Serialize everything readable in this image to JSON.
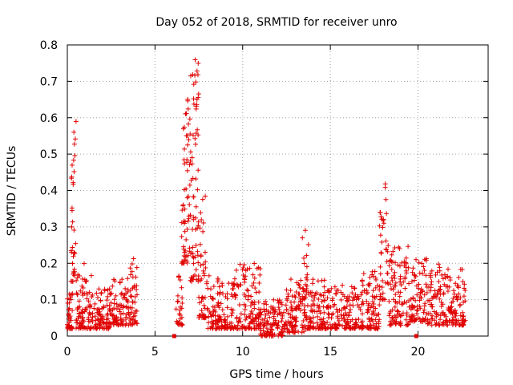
{
  "chart_data": {
    "type": "scatter",
    "title": "Day 052 of 2018, SRMTID for receiver unro",
    "xlabel": "GPS time / hours",
    "ylabel": "SRMTID / TECUs",
    "xlim": [
      0,
      24
    ],
    "ylim": [
      0,
      0.8
    ],
    "xticks": [
      "0",
      "5",
      "10",
      "15",
      "20"
    ],
    "yticks": [
      "0",
      "0.1",
      "0.2",
      "0.3",
      "0.4",
      "0.5",
      "0.6",
      "0.7",
      "0.8"
    ],
    "grid": true,
    "marker_color": "#e00000",
    "series": [
      {
        "name": "SRMTID",
        "marker": "plus",
        "clusters": [
          {
            "x": [
              0.0,
              0.3
            ],
            "y": [
              0.02,
              0.12
            ],
            "n": 40
          },
          {
            "x": [
              0.2,
              0.5
            ],
            "y": [
              0.15,
              0.6
            ],
            "n": 35
          },
          {
            "x": [
              0.5,
              1.5
            ],
            "y": [
              0.02,
              0.17
            ],
            "n": 90
          },
          {
            "x": [
              0.9,
              1.1
            ],
            "y": [
              0.15,
              0.2
            ],
            "n": 5
          },
          {
            "x": [
              1.5,
              2.5
            ],
            "y": [
              0.02,
              0.13
            ],
            "n": 90
          },
          {
            "x": [
              2.5,
              3.5
            ],
            "y": [
              0.03,
              0.16
            ],
            "n": 80
          },
          {
            "x": [
              3.5,
              4.0
            ],
            "y": [
              0.03,
              0.22
            ],
            "n": 45
          },
          {
            "x": [
              6.2,
              6.6
            ],
            "y": [
              0.03,
              0.17
            ],
            "n": 30
          },
          {
            "x": [
              6.5,
              7.0
            ],
            "y": [
              0.2,
              0.66
            ],
            "n": 60
          },
          {
            "x": [
              7.0,
              7.5
            ],
            "y": [
              0.15,
              0.77
            ],
            "n": 70
          },
          {
            "x": [
              7.5,
              8.0
            ],
            "y": [
              0.05,
              0.4
            ],
            "n": 50
          },
          {
            "x": [
              8.0,
              9.5
            ],
            "y": [
              0.02,
              0.17
            ],
            "n": 120
          },
          {
            "x": [
              9.5,
              11.0
            ],
            "y": [
              0.02,
              0.2
            ],
            "n": 130
          },
          {
            "x": [
              11.0,
              12.5
            ],
            "y": [
              0.0,
              0.1
            ],
            "n": 120
          },
          {
            "x": [
              12.5,
              13.5
            ],
            "y": [
              0.01,
              0.16
            ],
            "n": 90
          },
          {
            "x": [
              13.4,
              13.8
            ],
            "y": [
              0.1,
              0.3
            ],
            "n": 20
          },
          {
            "x": [
              13.5,
              15.0
            ],
            "y": [
              0.02,
              0.17
            ],
            "n": 120
          },
          {
            "x": [
              15.0,
              16.5
            ],
            "y": [
              0.02,
              0.14
            ],
            "n": 110
          },
          {
            "x": [
              16.5,
              17.8
            ],
            "y": [
              0.02,
              0.18
            ],
            "n": 110
          },
          {
            "x": [
              17.8,
              18.2
            ],
            "y": [
              0.1,
              0.42
            ],
            "n": 35
          },
          {
            "x": [
              18.2,
              19.5
            ],
            "y": [
              0.03,
              0.25
            ],
            "n": 110
          },
          {
            "x": [
              19.5,
              20.5
            ],
            "y": [
              0.04,
              0.22
            ],
            "n": 80
          },
          {
            "x": [
              20.5,
              21.5
            ],
            "y": [
              0.03,
              0.2
            ],
            "n": 80
          },
          {
            "x": [
              21.5,
              22.7
            ],
            "y": [
              0.03,
              0.2
            ],
            "n": 100
          }
        ],
        "squares": [
          [
            6.1,
            0.0
          ],
          [
            19.9,
            0.0
          ]
        ]
      }
    ]
  }
}
